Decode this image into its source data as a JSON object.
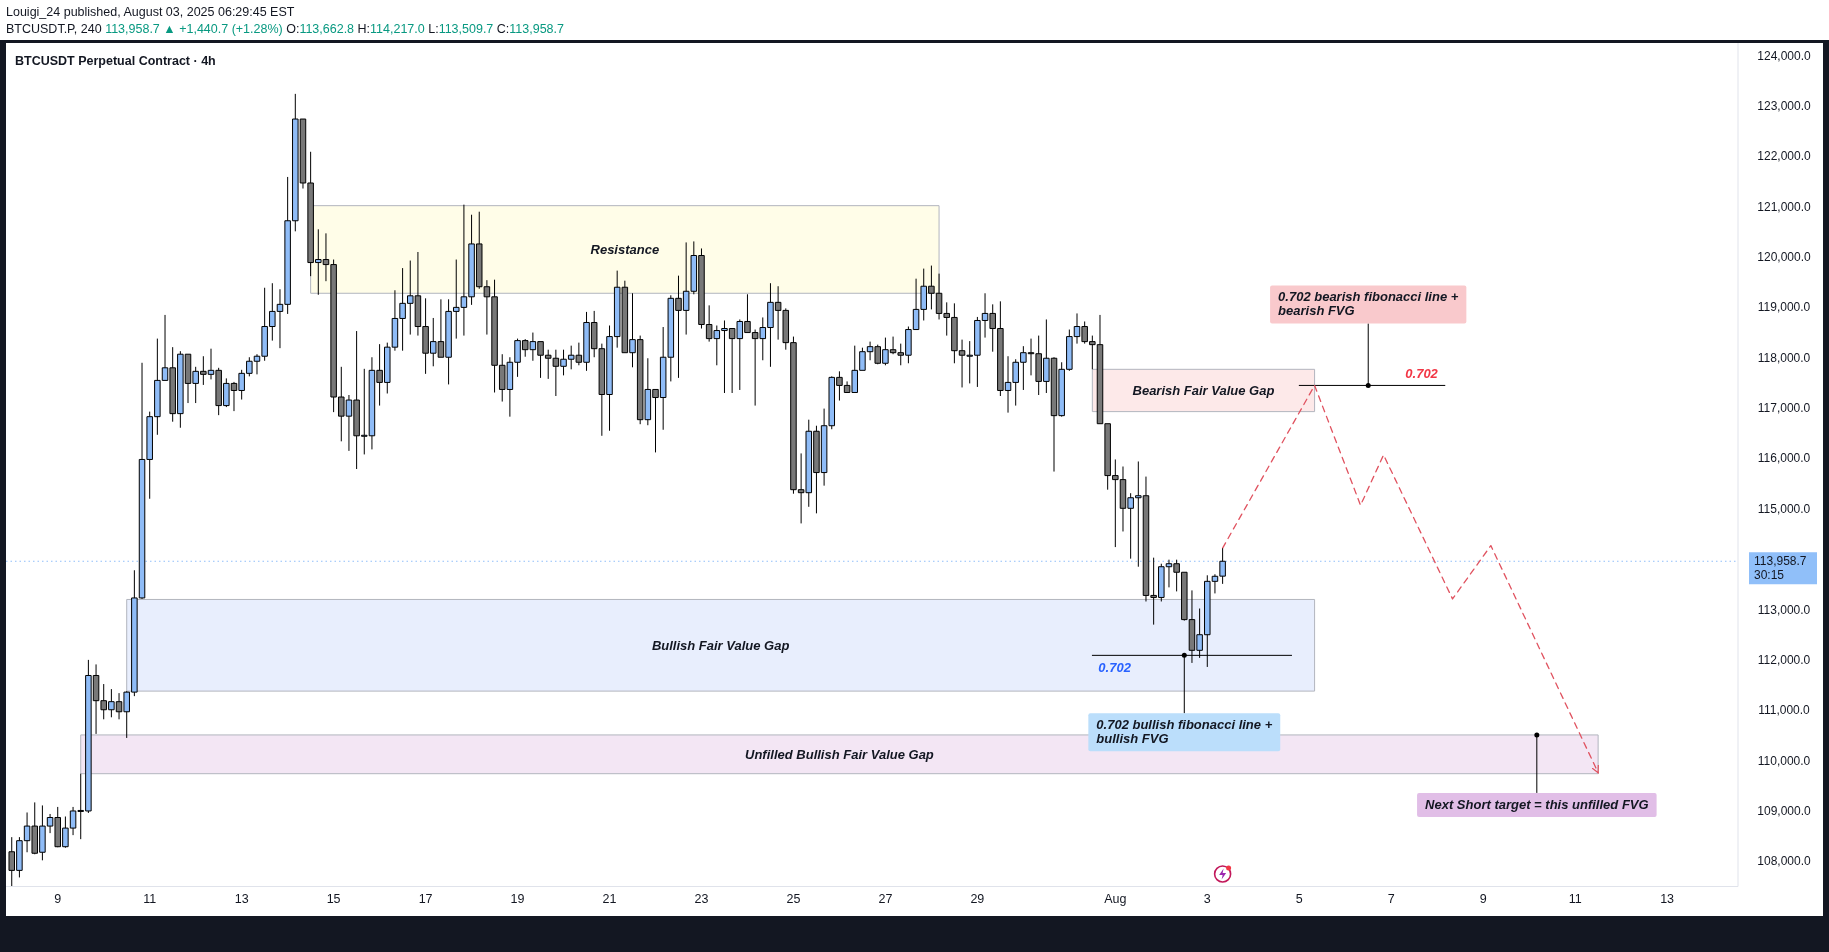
{
  "chart_data": {
    "type": "candlestick",
    "title": "BTCUSDT Perpetual Contract · 4h",
    "subtitle": "Louigi_24 published, August 03, 2025 06:29:45 EST",
    "x": [
      "2025-07-08T00:00",
      "2025-07-08T04:00",
      "2025-07-08T08:00",
      "2025-07-08T12:00",
      "2025-07-08T16:00",
      "2025-07-08T20:00",
      "2025-07-09T00:00",
      "2025-07-09T04:00",
      "2025-07-09T08:00",
      "2025-07-09T12:00",
      "2025-07-09T16:00",
      "2025-07-09T20:00",
      "2025-07-10T00:00",
      "2025-07-10T04:00",
      "2025-07-10T08:00",
      "2025-07-10T12:00",
      "2025-07-10T16:00",
      "2025-07-10T20:00",
      "2025-07-11T00:00",
      "2025-07-11T04:00",
      "2025-07-11T08:00",
      "2025-07-11T12:00",
      "2025-07-11T16:00",
      "2025-07-11T20:00",
      "2025-07-12T00:00",
      "2025-07-12T04:00",
      "2025-07-12T08:00",
      "2025-07-12T12:00",
      "2025-07-12T16:00",
      "2025-07-12T20:00",
      "2025-07-13T00:00",
      "2025-07-13T04:00",
      "2025-07-13T08:00",
      "2025-07-13T12:00",
      "2025-07-13T16:00",
      "2025-07-13T20:00",
      "2025-07-14T00:00",
      "2025-07-14T04:00",
      "2025-07-14T08:00",
      "2025-07-14T12:00",
      "2025-07-14T16:00",
      "2025-07-14T20:00",
      "2025-07-15T00:00",
      "2025-07-15T04:00",
      "2025-07-15T08:00",
      "2025-07-15T12:00",
      "2025-07-15T16:00",
      "2025-07-15T20:00",
      "2025-07-16T00:00",
      "2025-07-16T04:00",
      "2025-07-16T08:00",
      "2025-07-16T12:00",
      "2025-07-16T16:00",
      "2025-07-16T20:00",
      "2025-07-17T00:00",
      "2025-07-17T04:00",
      "2025-07-17T08:00",
      "2025-07-17T12:00",
      "2025-07-17T16:00",
      "2025-07-17T20:00",
      "2025-07-18T00:00",
      "2025-07-18T04:00",
      "2025-07-18T08:00",
      "2025-07-18T12:00",
      "2025-07-18T16:00",
      "2025-07-18T20:00",
      "2025-07-19T00:00",
      "2025-07-19T04:00",
      "2025-07-19T08:00",
      "2025-07-19T12:00",
      "2025-07-19T16:00",
      "2025-07-19T20:00",
      "2025-07-20T00:00",
      "2025-07-20T04:00",
      "2025-07-20T08:00",
      "2025-07-20T12:00",
      "2025-07-20T16:00",
      "2025-07-20T20:00",
      "2025-07-21T00:00",
      "2025-07-21T04:00",
      "2025-07-21T08:00",
      "2025-07-21T12:00",
      "2025-07-21T16:00",
      "2025-07-21T20:00",
      "2025-07-22T00:00",
      "2025-07-22T04:00",
      "2025-07-22T08:00",
      "2025-07-22T12:00",
      "2025-07-22T16:00",
      "2025-07-22T20:00",
      "2025-07-23T00:00",
      "2025-07-23T04:00",
      "2025-07-23T08:00",
      "2025-07-23T12:00",
      "2025-07-23T16:00",
      "2025-07-23T20:00",
      "2025-07-24T00:00",
      "2025-07-24T04:00",
      "2025-07-24T08:00",
      "2025-07-24T12:00",
      "2025-07-24T16:00",
      "2025-07-24T20:00",
      "2025-07-25T00:00",
      "2025-07-25T04:00",
      "2025-07-25T08:00",
      "2025-07-25T12:00",
      "2025-07-25T16:00",
      "2025-07-25T20:00",
      "2025-07-26T00:00",
      "2025-07-26T04:00",
      "2025-07-26T08:00",
      "2025-07-26T12:00",
      "2025-07-26T16:00",
      "2025-07-26T20:00",
      "2025-07-27T00:00",
      "2025-07-27T04:00",
      "2025-07-27T08:00",
      "2025-07-27T12:00",
      "2025-07-27T16:00",
      "2025-07-27T20:00",
      "2025-07-28T00:00",
      "2025-07-28T04:00",
      "2025-07-28T08:00",
      "2025-07-28T12:00",
      "2025-07-28T16:00",
      "2025-07-28T20:00",
      "2025-07-29T00:00",
      "2025-07-29T04:00",
      "2025-07-29T08:00",
      "2025-07-29T12:00",
      "2025-07-29T16:00",
      "2025-07-29T20:00",
      "2025-07-30T00:00",
      "2025-07-30T04:00",
      "2025-07-30T08:00",
      "2025-07-30T12:00",
      "2025-07-30T16:00",
      "2025-07-30T20:00",
      "2025-07-31T00:00",
      "2025-07-31T04:00",
      "2025-07-31T08:00",
      "2025-07-31T12:00",
      "2025-07-31T16:00",
      "2025-07-31T20:00",
      "2025-08-01T00:00",
      "2025-08-01T04:00",
      "2025-08-01T08:00",
      "2025-08-01T12:00",
      "2025-08-01T16:00",
      "2025-08-01T20:00",
      "2025-08-02T00:00",
      "2025-08-02T04:00",
      "2025-08-02T08:00",
      "2025-08-02T12:00",
      "2025-08-02T16:00",
      "2025-08-02T20:00",
      "2025-08-03T00:00",
      "2025-08-03T04:00",
      "2025-08-03T08:00"
    ],
    "ohlc": [
      [
        108190,
        108480,
        107500,
        107820
      ],
      [
        107820,
        108480,
        107680,
        108410
      ],
      [
        108410,
        108970,
        108180,
        108700
      ],
      [
        108700,
        109170,
        108140,
        108160
      ],
      [
        108180,
        109110,
        108020,
        108700
      ],
      [
        108700,
        108940,
        108560,
        108870
      ],
      [
        108870,
        109080,
        108280,
        108290
      ],
      [
        108290,
        108890,
        108270,
        108660
      ],
      [
        108660,
        109080,
        108520,
        109000
      ],
      [
        109000,
        109740,
        108440,
        109010
      ],
      [
        109000,
        112000,
        108960,
        111690
      ],
      [
        111690,
        111910,
        110530,
        111190
      ],
      [
        111190,
        111520,
        110820,
        111010
      ],
      [
        111010,
        111420,
        110860,
        111170
      ],
      [
        111170,
        111340,
        110820,
        110970
      ],
      [
        110970,
        111380,
        110450,
        111360
      ],
      [
        111360,
        113780,
        111280,
        113230
      ],
      [
        113230,
        117900,
        113210,
        115980
      ],
      [
        115980,
        116930,
        115200,
        116830
      ],
      [
        116830,
        118380,
        116470,
        117550
      ],
      [
        117550,
        118850,
        117550,
        117800
      ],
      [
        117800,
        118210,
        116730,
        116890
      ],
      [
        116890,
        118130,
        116610,
        118070
      ],
      [
        118070,
        118070,
        117100,
        117490
      ],
      [
        117490,
        117820,
        117100,
        117730
      ],
      [
        117730,
        118030,
        117460,
        117670
      ],
      [
        117670,
        118180,
        117570,
        117750
      ],
      [
        117750,
        117800,
        116860,
        117050
      ],
      [
        117050,
        117590,
        117020,
        117490
      ],
      [
        117490,
        117520,
        116940,
        117350
      ],
      [
        117350,
        117760,
        117170,
        117690
      ],
      [
        117690,
        118010,
        117630,
        117930
      ],
      [
        117930,
        118070,
        117670,
        118030
      ],
      [
        118030,
        119390,
        117940,
        118620
      ],
      [
        118620,
        119480,
        118340,
        118920
      ],
      [
        118920,
        119360,
        118190,
        119060
      ],
      [
        119060,
        121590,
        118870,
        120720
      ],
      [
        120720,
        123240,
        120510,
        122740
      ],
      [
        122740,
        122740,
        121360,
        121470
      ],
      [
        121470,
        122090,
        119620,
        119890
      ],
      [
        119890,
        120550,
        119250,
        119950
      ],
      [
        119950,
        120470,
        119520,
        119850
      ],
      [
        119850,
        119950,
        116920,
        117220
      ],
      [
        117220,
        117820,
        116340,
        116840
      ],
      [
        116840,
        117260,
        116150,
        117160
      ],
      [
        117160,
        118530,
        115790,
        116450
      ],
      [
        116450,
        117780,
        116080,
        116460
      ],
      [
        116450,
        118010,
        116180,
        117750
      ],
      [
        117750,
        118270,
        117050,
        117510
      ],
      [
        117510,
        118300,
        117290,
        118210
      ],
      [
        118210,
        119340,
        118140,
        118780
      ],
      [
        118780,
        119780,
        118140,
        119080
      ],
      [
        119080,
        119930,
        118460,
        119230
      ],
      [
        119230,
        120100,
        118440,
        118620
      ],
      [
        118620,
        119180,
        117680,
        118090
      ],
      [
        118090,
        118790,
        117830,
        118320
      ],
      [
        118320,
        119160,
        118010,
        118010
      ],
      [
        118010,
        119160,
        117470,
        118920
      ],
      [
        118920,
        119950,
        118380,
        119000
      ],
      [
        119000,
        121040,
        118440,
        119210
      ],
      [
        119210,
        120840,
        119050,
        120260
      ],
      [
        120260,
        120900,
        119370,
        119410
      ],
      [
        119410,
        119540,
        118460,
        119210
      ],
      [
        119210,
        119550,
        117310,
        117850
      ],
      [
        117850,
        118070,
        117130,
        117370
      ],
      [
        117370,
        118010,
        116830,
        117910
      ],
      [
        117910,
        118380,
        117620,
        118340
      ],
      [
        118340,
        118370,
        118020,
        118160
      ],
      [
        118160,
        118500,
        117940,
        118320
      ],
      [
        118320,
        118320,
        117600,
        118050
      ],
      [
        118050,
        118160,
        117580,
        117990
      ],
      [
        117990,
        118160,
        117240,
        117830
      ],
      [
        117830,
        118160,
        117650,
        117970
      ],
      [
        117970,
        118240,
        117770,
        118050
      ],
      [
        118050,
        118300,
        117850,
        117910
      ],
      [
        117910,
        118910,
        117740,
        118700
      ],
      [
        118700,
        118930,
        118010,
        118180
      ],
      [
        118180,
        118280,
        116450,
        117270
      ],
      [
        117270,
        118640,
        116550,
        118420
      ],
      [
        118420,
        119730,
        118200,
        119400
      ],
      [
        119400,
        119530,
        118100,
        118100
      ],
      [
        118100,
        119280,
        117810,
        118360
      ],
      [
        118360,
        118440,
        116680,
        116770
      ],
      [
        116770,
        117990,
        116660,
        117370
      ],
      [
        117370,
        117370,
        116120,
        117210
      ],
      [
        117210,
        118610,
        116570,
        118010
      ],
      [
        118010,
        119240,
        117530,
        119180
      ],
      [
        119180,
        119630,
        117600,
        118940
      ],
      [
        118940,
        120290,
        118460,
        119320
      ],
      [
        119320,
        120310,
        119260,
        120030
      ],
      [
        120030,
        120170,
        118580,
        118660
      ],
      [
        118660,
        119040,
        118320,
        118380
      ],
      [
        118380,
        118640,
        117850,
        118540
      ],
      [
        118540,
        118740,
        117300,
        118580
      ],
      [
        118580,
        118580,
        117300,
        118380
      ],
      [
        118380,
        118760,
        117360,
        118720
      ],
      [
        118720,
        119260,
        118500,
        118500
      ],
      [
        118500,
        118560,
        117050,
        118380
      ],
      [
        118380,
        118800,
        117950,
        118600
      ],
      [
        118600,
        119480,
        117820,
        119100
      ],
      [
        119100,
        119420,
        118360,
        118940
      ],
      [
        118940,
        118980,
        118160,
        118300
      ],
      [
        118300,
        118420,
        115300,
        115380
      ],
      [
        115380,
        116100,
        114710,
        115320
      ],
      [
        115320,
        116770,
        115040,
        116540
      ],
      [
        116540,
        116650,
        114910,
        115720
      ],
      [
        115720,
        116990,
        115460,
        116650
      ],
      [
        116650,
        117630,
        116580,
        117610
      ],
      [
        117610,
        117730,
        117150,
        117450
      ],
      [
        117450,
        117530,
        117310,
        117310
      ],
      [
        117310,
        118240,
        117310,
        117750
      ],
      [
        117750,
        118200,
        117750,
        118120
      ],
      [
        118120,
        118320,
        117950,
        118220
      ],
      [
        118220,
        118260,
        117870,
        117890
      ],
      [
        117890,
        118400,
        117850,
        118160
      ],
      [
        118160,
        118420,
        118070,
        118100
      ],
      [
        118100,
        118280,
        117850,
        118050
      ],
      [
        118050,
        118620,
        117890,
        118560
      ],
      [
        118560,
        119570,
        118560,
        118960
      ],
      [
        118960,
        119770,
        118740,
        119420
      ],
      [
        119420,
        119830,
        118960,
        119280
      ],
      [
        119280,
        119670,
        118760,
        118880
      ],
      [
        118880,
        119100,
        118440,
        118800
      ],
      [
        118800,
        119080,
        117890,
        118140
      ],
      [
        118140,
        118360,
        117410,
        118050
      ],
      [
        118050,
        118330,
        117490,
        118050
      ],
      [
        118050,
        118810,
        117420,
        118740
      ],
      [
        118740,
        119280,
        118400,
        118880
      ],
      [
        118880,
        119060,
        118120,
        118580
      ],
      [
        118580,
        119120,
        117240,
        117350
      ],
      [
        117350,
        118030,
        116910,
        117510
      ],
      [
        117510,
        117970,
        117050,
        117910
      ],
      [
        117910,
        118230,
        117360,
        118100
      ],
      [
        118100,
        118380,
        117650,
        118080
      ],
      [
        118080,
        118440,
        117260,
        117530
      ],
      [
        117530,
        118760,
        117300,
        117990
      ],
      [
        117990,
        118010,
        115740,
        116850
      ],
      [
        116850,
        117910,
        116830,
        117770
      ],
      [
        117770,
        118560,
        117740,
        118420
      ],
      [
        118420,
        118880,
        118280,
        118620
      ],
      [
        118620,
        118720,
        118280,
        118320
      ],
      [
        118320,
        118440,
        117770,
        118260
      ],
      [
        118260,
        118850,
        116690,
        116690
      ],
      [
        116690,
        116690,
        115380,
        115660
      ],
      [
        115660,
        115980,
        114240,
        115580
      ],
      [
        115580,
        115840,
        114550,
        115010
      ],
      [
        115010,
        115310,
        114010,
        115220
      ],
      [
        115220,
        115940,
        113850,
        115260
      ],
      [
        115260,
        115640,
        113160,
        113280
      ],
      [
        113280,
        114030,
        112700,
        113240
      ],
      [
        113240,
        113910,
        113160,
        113850
      ],
      [
        113850,
        113990,
        113440,
        113910
      ],
      [
        113910,
        113990,
        113360,
        113740
      ],
      [
        113740,
        113740,
        112780,
        112800
      ],
      [
        112800,
        113380,
        111940,
        112190
      ],
      [
        112190,
        113020,
        112040,
        112500
      ],
      [
        112500,
        113680,
        111860,
        113560
      ],
      [
        113560,
        113700,
        113320,
        113660
      ],
      [
        113662.8,
        114217.0,
        113509.7,
        113958.7
      ]
    ],
    "colors": [
      "#787878",
      "#8fbcf7",
      "#8fbcf7",
      "#787878",
      "#8fbcf7",
      "#8fbcf7",
      "#787878",
      "#8fbcf7",
      "#8fbcf7",
      "#8fbcf7",
      "#8fbcf7",
      "#787878",
      "#787878",
      "#8fbcf7",
      "#787878",
      "#8fbcf7",
      "#8fbcf7",
      "#8fbcf7",
      "#8fbcf7",
      "#8fbcf7",
      "#8fbcf7",
      "#787878",
      "#8fbcf7",
      "#787878",
      "#8fbcf7",
      "#787878",
      "#8fbcf7",
      "#787878",
      "#8fbcf7",
      "#787878",
      "#8fbcf7",
      "#8fbcf7",
      "#8fbcf7",
      "#8fbcf7",
      "#8fbcf7",
      "#8fbcf7",
      "#8fbcf7",
      "#8fbcf7",
      "#787878",
      "#787878",
      "#8fbcf7",
      "#787878",
      "#787878",
      "#787878",
      "#8fbcf7",
      "#787878",
      "#8fbcf7",
      "#8fbcf7",
      "#787878",
      "#8fbcf7",
      "#8fbcf7",
      "#8fbcf7",
      "#8fbcf7",
      "#787878",
      "#787878",
      "#8fbcf7",
      "#787878",
      "#8fbcf7",
      "#8fbcf7",
      "#8fbcf7",
      "#8fbcf7",
      "#787878",
      "#787878",
      "#787878",
      "#787878",
      "#8fbcf7",
      "#8fbcf7",
      "#787878",
      "#8fbcf7",
      "#787878",
      "#787878",
      "#787878",
      "#8fbcf7",
      "#8fbcf7",
      "#787878",
      "#8fbcf7",
      "#787878",
      "#787878",
      "#8fbcf7",
      "#8fbcf7",
      "#787878",
      "#8fbcf7",
      "#787878",
      "#8fbcf7",
      "#787878",
      "#8fbcf7",
      "#8fbcf7",
      "#787878",
      "#8fbcf7",
      "#8fbcf7",
      "#787878",
      "#787878",
      "#8fbcf7",
      "#8fbcf7",
      "#787878",
      "#8fbcf7",
      "#787878",
      "#787878",
      "#8fbcf7",
      "#8fbcf7",
      "#787878",
      "#787878",
      "#787878",
      "#787878",
      "#8fbcf7",
      "#787878",
      "#8fbcf7",
      "#8fbcf7",
      "#787878",
      "#787878",
      "#8fbcf7",
      "#8fbcf7",
      "#8fbcf7",
      "#787878",
      "#8fbcf7",
      "#787878",
      "#787878",
      "#8fbcf7",
      "#8fbcf7",
      "#8fbcf7",
      "#787878",
      "#787878",
      "#787878",
      "#787878",
      "#787878",
      "#8fbcf7",
      "#8fbcf7",
      "#8fbcf7",
      "#787878",
      "#787878",
      "#8fbcf7",
      "#8fbcf7",
      "#8fbcf7",
      "#787878",
      "#787878",
      "#8fbcf7",
      "#787878",
      "#8fbcf7",
      "#8fbcf7",
      "#8fbcf7",
      "#787878",
      "#787878",
      "#787878",
      "#787878",
      "#787878",
      "#787878",
      "#8fbcf7",
      "#8fbcf7",
      "#787878",
      "#787878",
      "#8fbcf7",
      "#8fbcf7",
      "#787878",
      "#787878",
      "#787878",
      "#8fbcf7",
      "#8fbcf7",
      "#8fbcf7",
      "#8fbcf7"
    ],
    "series": [
      {
        "type": "area",
        "name": "Resistance",
        "x": [
          "2025-07-14T12:00",
          "2025-07-28T04:00"
        ],
        "values": [
          null,
          null
        ],
        "lower": [
          119280,
          119280
        ],
        "upper": [
          121020,
          121020
        ]
      },
      {
        "type": "area",
        "name": "Bullish Fair Value Gap",
        "x": [
          "2025-07-10T12:00",
          "2025-08-05T08:00"
        ],
        "values": [
          null,
          null
        ],
        "lower": [
          111380,
          111380
        ],
        "upper": [
          113200,
          113200
        ]
      },
      {
        "type": "area",
        "name": "Bearish Fair Value Gap",
        "x": [
          "2025-07-31T12:00",
          "2025-08-05T08:00"
        ],
        "values": [
          null,
          null
        ],
        "lower": [
          116930,
          116930
        ],
        "upper": [
          117770,
          117770
        ]
      },
      {
        "type": "area",
        "name": "Unfilled Bullish Fair Value Gap",
        "x": [
          "2025-07-09T12:00",
          "2025-08-11T12:00"
        ],
        "values": [
          null,
          null
        ],
        "lower": [
          109740,
          109740
        ],
        "upper": [
          110510,
          110510
        ]
      },
      {
        "type": "line",
        "name": "0.702",
        "x": [
          "2025-08-05T00:00",
          "2025-08-08T04:00"
        ],
        "values": [
          117450,
          117450
        ],
        "color": "#000000"
      },
      {
        "type": "line",
        "name": "0.702",
        "x": [
          "2025-07-31T12:00",
          "2025-08-04T20:00"
        ],
        "values": [
          112090,
          112090
        ],
        "color": "#000000"
      },
      {
        "type": "line",
        "x": [
          "2025-08-03T08:00",
          "2025-08-05T08:00",
          "2025-08-06T08:00",
          "2025-08-06T20:00",
          "2025-08-08T08:00",
          "2025-08-09T04:00",
          "2025-08-11T12:00"
        ],
        "values": [
          114220,
          117450,
          115070,
          116070,
          113210,
          114270,
          109760
        ],
        "color": "#e0525f",
        "line_style": "dashed"
      }
    ],
    "xlim": [
      "2025-07-07T21:00",
      "2025-08-14T13:00"
    ],
    "xticks": [
      {
        "value": "2025-07-09",
        "label": "9"
      },
      {
        "value": "2025-07-11",
        "label": "11"
      },
      {
        "value": "2025-07-13",
        "label": "13"
      },
      {
        "value": "2025-07-15",
        "label": "15"
      },
      {
        "value": "2025-07-17",
        "label": "17"
      },
      {
        "value": "2025-07-19",
        "label": "19"
      },
      {
        "value": "2025-07-21",
        "label": "21"
      },
      {
        "value": "2025-07-23",
        "label": "23"
      },
      {
        "value": "2025-07-25",
        "label": "25"
      },
      {
        "value": "2025-07-27",
        "label": "27"
      },
      {
        "value": "2025-07-29",
        "label": "29"
      },
      {
        "value": "2025-08-01",
        "label": "Aug"
      },
      {
        "value": "2025-08-03",
        "label": "3"
      },
      {
        "value": "2025-08-05",
        "label": "5"
      },
      {
        "value": "2025-08-07",
        "label": "7"
      },
      {
        "value": "2025-08-09",
        "label": "9"
      },
      {
        "value": "2025-08-11",
        "label": "11"
      },
      {
        "value": "2025-08-13",
        "label": "13"
      }
    ],
    "ylim": [
      107500,
      124250
    ],
    "yticks": [
      {
        "value": 108000,
        "label": "108,000.0"
      },
      {
        "value": 109000,
        "label": "109,000.0"
      },
      {
        "value": 110000,
        "label": "110,000.0"
      },
      {
        "value": 111000,
        "label": "111,000.0"
      },
      {
        "value": 112000,
        "label": "112,000.0"
      },
      {
        "value": 113000,
        "label": "113,000.0"
      },
      {
        "value": 115000,
        "label": "115,000.0"
      },
      {
        "value": 116000,
        "label": "116,000.0"
      },
      {
        "value": 117000,
        "label": "117,000.0"
      },
      {
        "value": 118000,
        "label": "118,000.0"
      },
      {
        "value": 119000,
        "label": "119,000.0"
      },
      {
        "value": 120000,
        "label": "120,000.0"
      },
      {
        "value": 121000,
        "label": "121,000.0"
      },
      {
        "value": 122000,
        "label": "122,000.0"
      },
      {
        "value": 123000,
        "label": "123,000.0"
      },
      {
        "value": 124000,
        "label": "124,000.0"
      }
    ],
    "ref_lines": [
      {
        "axis": "y",
        "value": 113958.7,
        "label": "113,958.7",
        "color": "#90bff9",
        "line_style": "dotted"
      }
    ],
    "annotations": [
      "BTCUSDT.P, 240 113,958.7 ▲ +1,440.7 (+1.28%) O:113,662.8 H:114,217.0 L:113,509.7 C:113,958.7",
      "30:15",
      {
        "text": "0.702 bearish fibonacci line +\nbearish FVG",
        "x": "2025-08-06T12:00",
        "y": 117450
      },
      {
        "text": "0.702 bullish fibonacci line +\nbullish FVG",
        "x": "2025-08-02T12:00",
        "y": 112090
      },
      {
        "text": "Next Short target = this unfilled FVG",
        "x": "2025-08-10T04:00",
        "y": 110510
      }
    ]
  }
}
